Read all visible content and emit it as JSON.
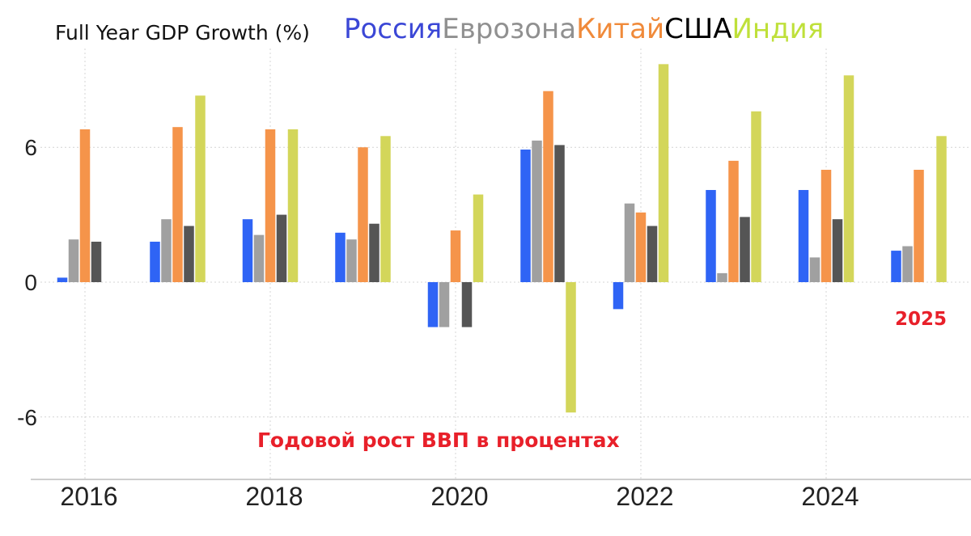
{
  "title": "Full Year GDP Growth (%)",
  "annotation_year": "2025",
  "annotation_subtitle": "Годовой рост ВВП в процентах",
  "colors": {
    "Россия": "#2f64f5",
    "Еврозона": "#a0a0a0",
    "Китай": "#f5944a",
    "США": "#555555",
    "Индия": "#d3d65a"
  },
  "legend_colors": {
    "Россия": "#3b47d6",
    "Еврозона": "#909090",
    "Китай": "#f08a3a",
    "США": "#000000",
    "Индия": "#bfe03a"
  },
  "chart_data": {
    "type": "bar",
    "title": "Full Year GDP Growth (%)",
    "xlabel": "",
    "ylabel": "",
    "categories": [
      2016,
      2017,
      2018,
      2019,
      2020,
      2021,
      2022,
      2023,
      2024,
      2025
    ],
    "x_tick_labels": [
      "2016",
      "2018",
      "2020",
      "2022",
      "2024"
    ],
    "y_ticks": [
      -6,
      0,
      6
    ],
    "ylim": [
      -8.8,
      11.2
    ],
    "grid": true,
    "legend": "top",
    "series": [
      {
        "name": "Россия",
        "values": [
          0.2,
          1.8,
          2.8,
          2.2,
          -2.0,
          5.9,
          -1.2,
          4.1,
          4.1,
          1.4
        ]
      },
      {
        "name": "Еврозона",
        "values": [
          1.9,
          2.8,
          2.1,
          1.9,
          -2.0,
          6.3,
          3.5,
          0.4,
          1.1,
          1.6
        ]
      },
      {
        "name": "Китай",
        "values": [
          6.8,
          6.9,
          6.8,
          6.0,
          2.3,
          8.5,
          3.1,
          5.4,
          5.0,
          5.0
        ]
      },
      {
        "name": "США",
        "values": [
          1.8,
          2.5,
          3.0,
          2.6,
          -2.0,
          6.1,
          2.5,
          2.9,
          2.8,
          null
        ]
      },
      {
        "name": "Индия",
        "values": [
          null,
          8.3,
          6.8,
          6.5,
          3.9,
          -5.8,
          9.7,
          7.6,
          9.2,
          6.5
        ]
      }
    ]
  }
}
